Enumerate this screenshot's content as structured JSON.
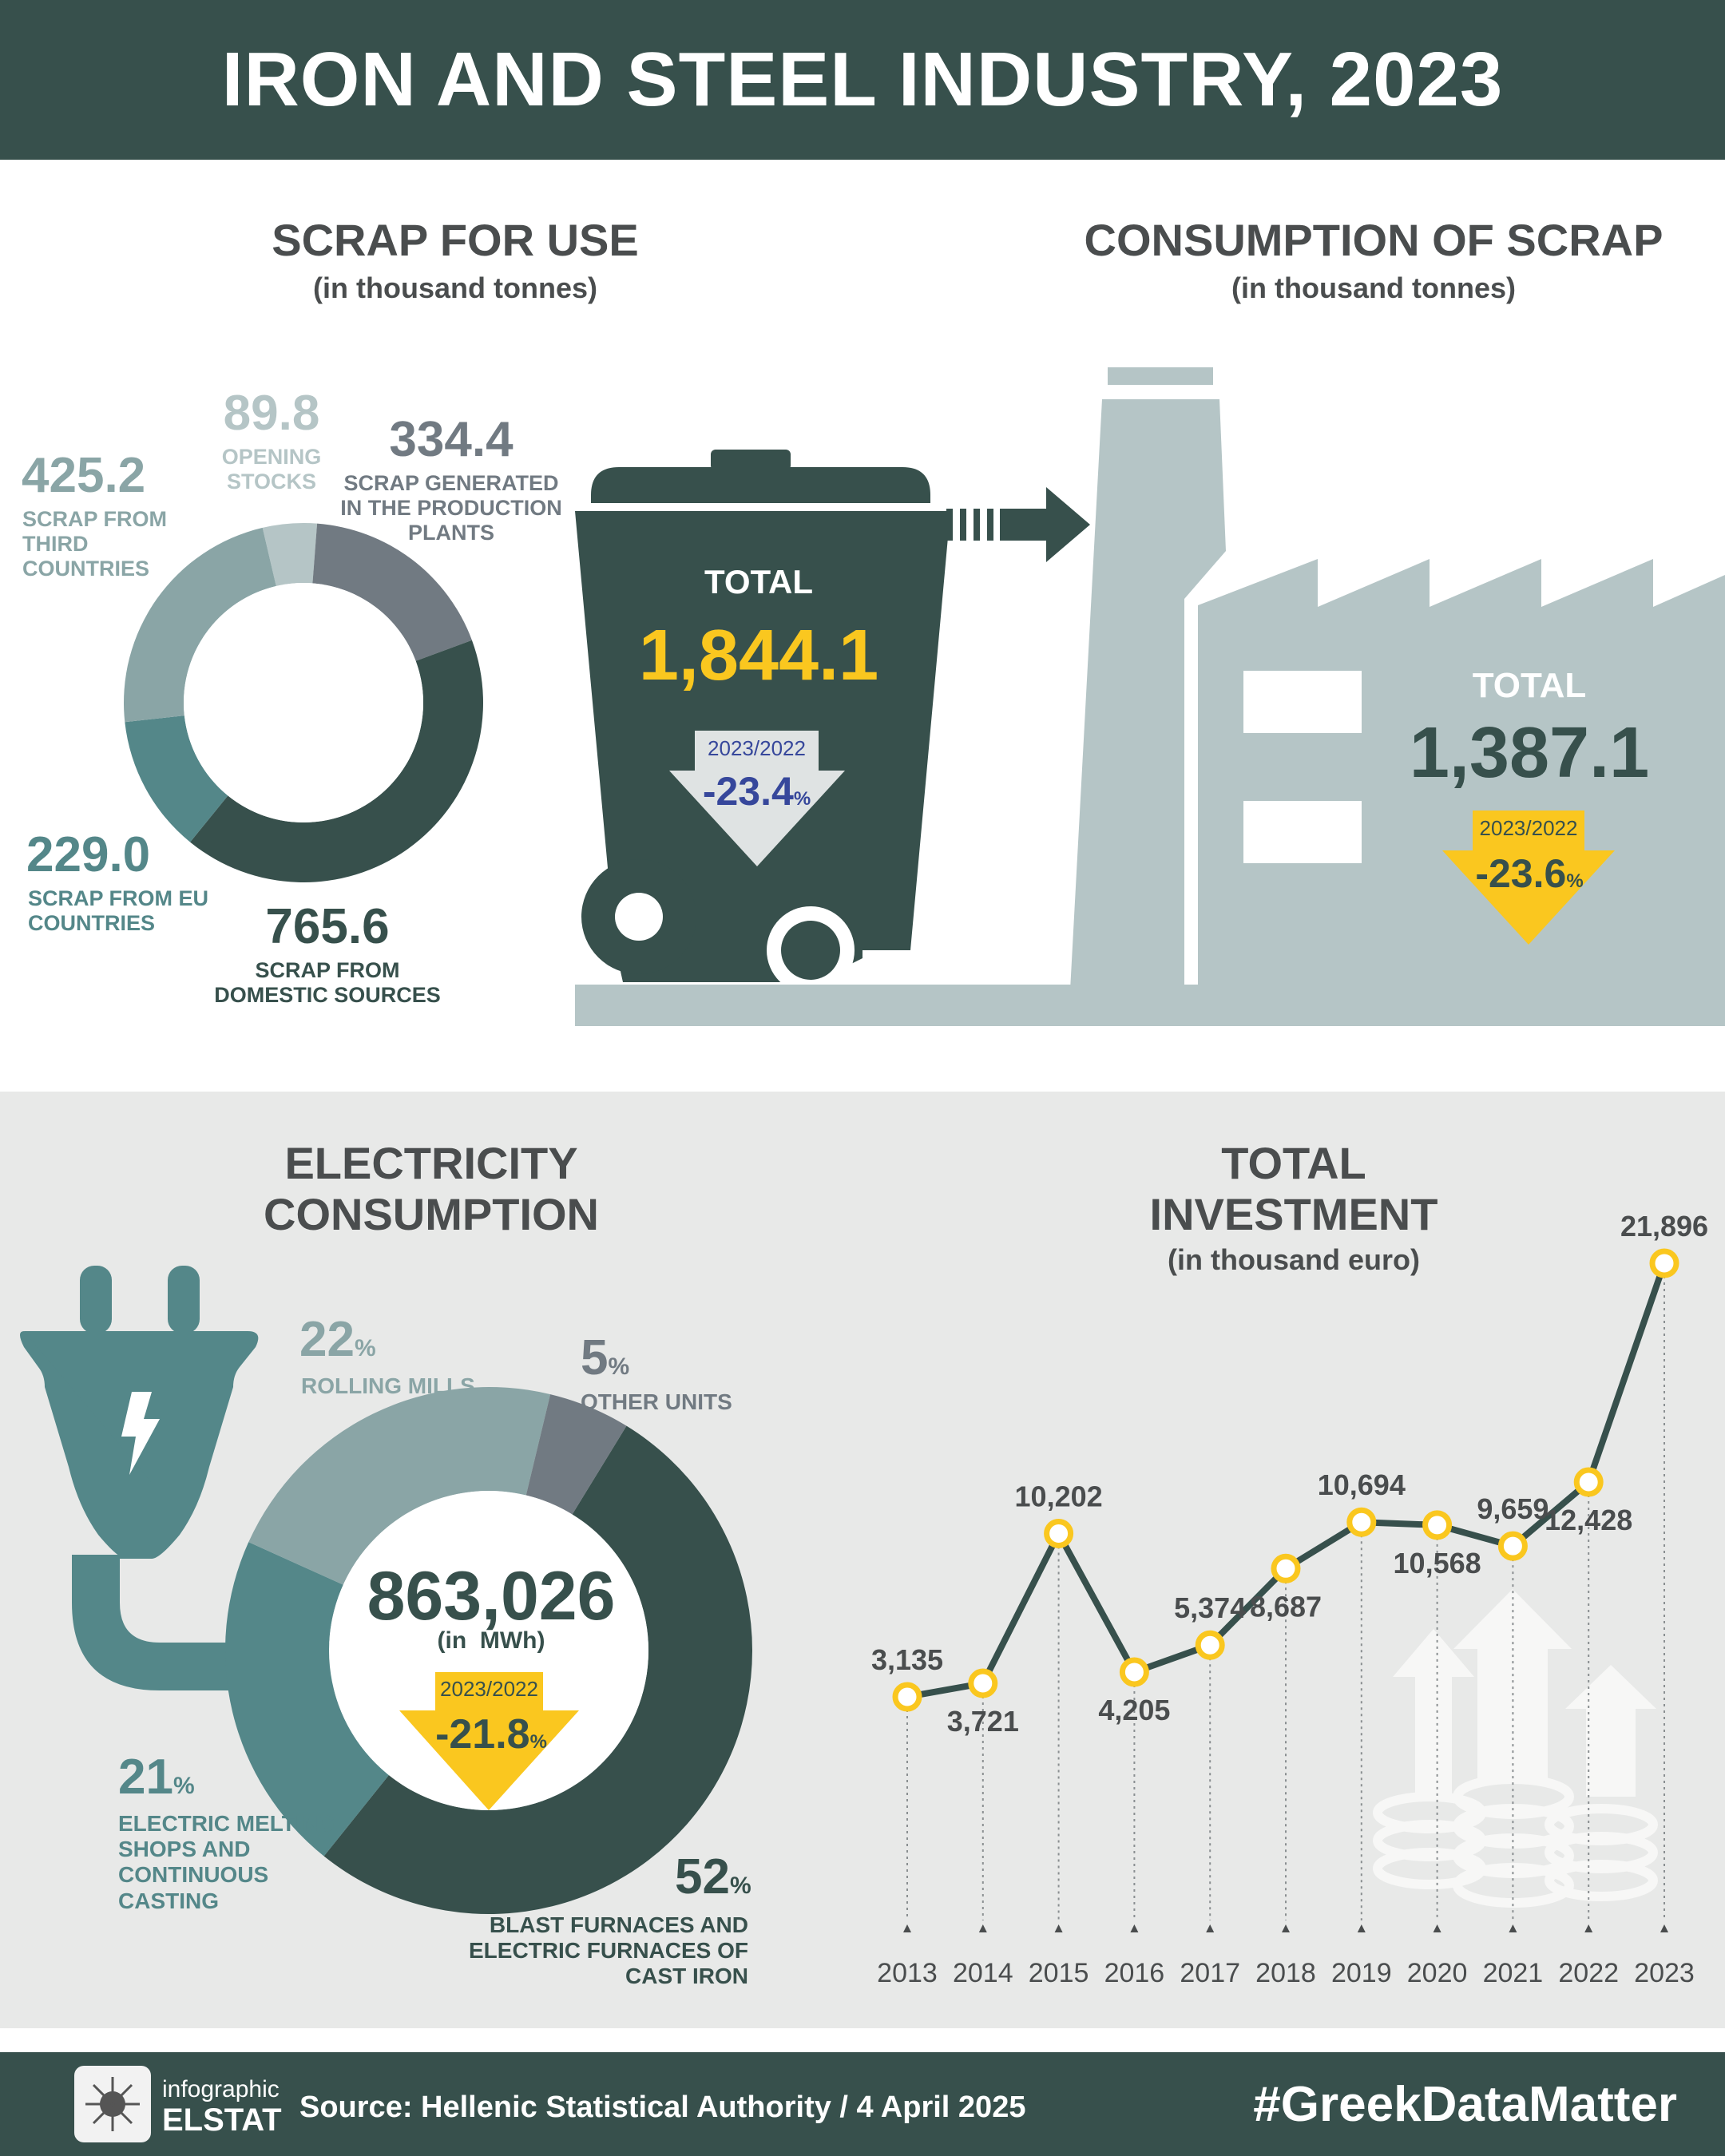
{
  "title": "IRON AND STEEL INDUSTRY, 2023",
  "colors": {
    "dark_teal": "#37504c",
    "teal": "#548789",
    "light_teal": "#8aa5a6",
    "pale": "#b5c5c6",
    "grey": "#717a82",
    "yellow": "#fac71f",
    "blue": "#36479b"
  },
  "scrap_for_use": {
    "title": "SCRAP FOR USE",
    "subtitle": "(in thousand tonnes)",
    "total_label": "TOTAL",
    "total_value": "1,844.1",
    "change_period": "2023/2022",
    "change_value": "-23.4",
    "change_unit": "%",
    "segments": [
      {
        "value": "89.8",
        "label": "OPENING STOCKS"
      },
      {
        "value": "334.4",
        "label": "SCRAP GENERATED IN THE PRODUCTION PLANTS"
      },
      {
        "value": "765.6",
        "label": "SCRAP FROM DOMESTIC SOURCES"
      },
      {
        "value": "229.0",
        "label": "SCRAP FROM EU COUNTRIES"
      },
      {
        "value": "425.2",
        "label": "SCRAP FROM THIRD COUNTRIES"
      }
    ]
  },
  "consumption_of_scrap": {
    "title": "CONSUMPTION OF SCRAP",
    "subtitle": "(in thousand tonnes)",
    "total_label": "TOTAL",
    "total_value": "1,387.1",
    "change_period": "2023/2022",
    "change_value": "-23.6",
    "change_unit": "%"
  },
  "electricity": {
    "title_line1": "ELECTRICITY",
    "title_line2": "CONSUMPTION",
    "total_value": "863,026",
    "total_unit": "(in  MWh)",
    "change_period": "2023/2022",
    "change_value": "-21.8",
    "change_unit": "%",
    "segments": [
      {
        "pct": "52",
        "label": "BLAST FURNACES AND ELECTRIC FURNACES OF CAST IRON"
      },
      {
        "pct": "21",
        "label": "ELECTRIC MELTING SHOPS AND CONTINUOUS CASTING"
      },
      {
        "pct": "22",
        "label": "ROLLING MILLS"
      },
      {
        "pct": "5",
        "label": "OTHER UNITS"
      }
    ],
    "pct_sign": "%"
  },
  "investment": {
    "title_line1": "TOTAL",
    "title_line2": "INVESTMENT",
    "subtitle": "(in thousand euro)"
  },
  "chart_data": [
    {
      "type": "pie",
      "title": "SCRAP FOR USE",
      "subtitle": "(in thousand tonnes)",
      "categories": [
        "OPENING STOCKS",
        "SCRAP GENERATED IN THE PRODUCTION PLANTS",
        "SCRAP FROM DOMESTIC SOURCES",
        "SCRAP FROM EU COUNTRIES",
        "SCRAP FROM THIRD COUNTRIES"
      ],
      "values": [
        89.8,
        334.4,
        765.6,
        229.0,
        425.2
      ]
    },
    {
      "type": "pie",
      "title": "ELECTRICITY CONSUMPTION",
      "categories": [
        "BLAST FURNACES AND ELECTRIC FURNACES OF CAST IRON",
        "ELECTRIC MELTING SHOPS AND CONTINUOUS CASTING",
        "ROLLING MILLS",
        "OTHER UNITS"
      ],
      "values": [
        52,
        21,
        22,
        5
      ]
    },
    {
      "type": "line",
      "title": "TOTAL INVESTMENT",
      "subtitle": "(in thousand euro)",
      "x": [
        "2013",
        "2014",
        "2015",
        "2016",
        "2017",
        "2018",
        "2019",
        "2020",
        "2021",
        "2022",
        "2023"
      ],
      "values": [
        3135,
        3721,
        10202,
        4205,
        5374,
        8687,
        10694,
        10568,
        9659,
        12428,
        21896
      ],
      "value_labels": [
        "3,135",
        "3,721",
        "10,202",
        "4,205",
        "5,374",
        "8,687",
        "10,694",
        "10,568",
        "9,659",
        "12,428",
        "21,896"
      ],
      "label_side": [
        "above",
        "below",
        "above",
        "below",
        "above",
        "below",
        "above",
        "below",
        "above",
        "below",
        "above"
      ]
    }
  ],
  "footer": {
    "logo_line1": "infographic",
    "logo_line2": "ELSTAT",
    "source": "Source: Hellenic Statistical Authority / 4 April 2025",
    "hashtag": "#GreekDataMatter"
  }
}
